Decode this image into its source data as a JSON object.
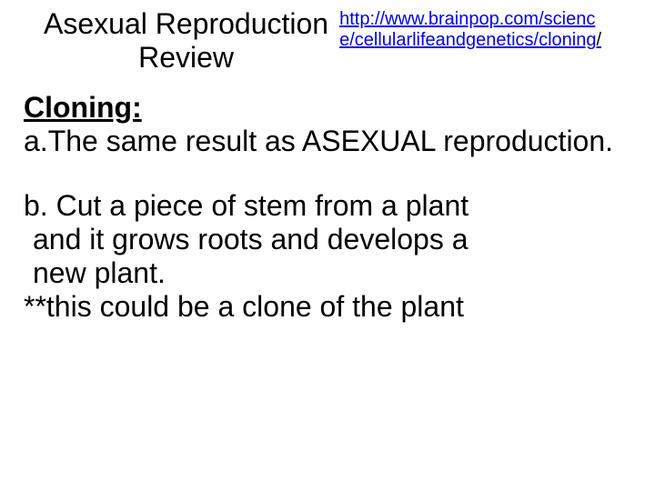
{
  "header": {
    "title_line1": "Asexual Reproduction",
    "title_line2": "Review",
    "url_text": "http://www.brainpop.com/science/cellularlifeandgenetics/cloning",
    "url_trailing": "/"
  },
  "section": {
    "heading": "Cloning:",
    "point_a": "a.The same result as ASEXUAL reproduction.",
    "point_b_line1": "b. Cut a piece of stem from a plant",
    "point_b_line2": " and it grows roots and develops a",
    "point_b_line3": " new plant.",
    "point_b_note": "**this could be a clone of the plant"
  },
  "styling": {
    "background_color": "#ffffff",
    "text_color": "#000000",
    "link_color": "#0000ee",
    "title_fontsize": 32,
    "body_fontsize": 32,
    "url_fontsize": 20,
    "heading_fontweight": 700,
    "body_fontweight": 400
  }
}
